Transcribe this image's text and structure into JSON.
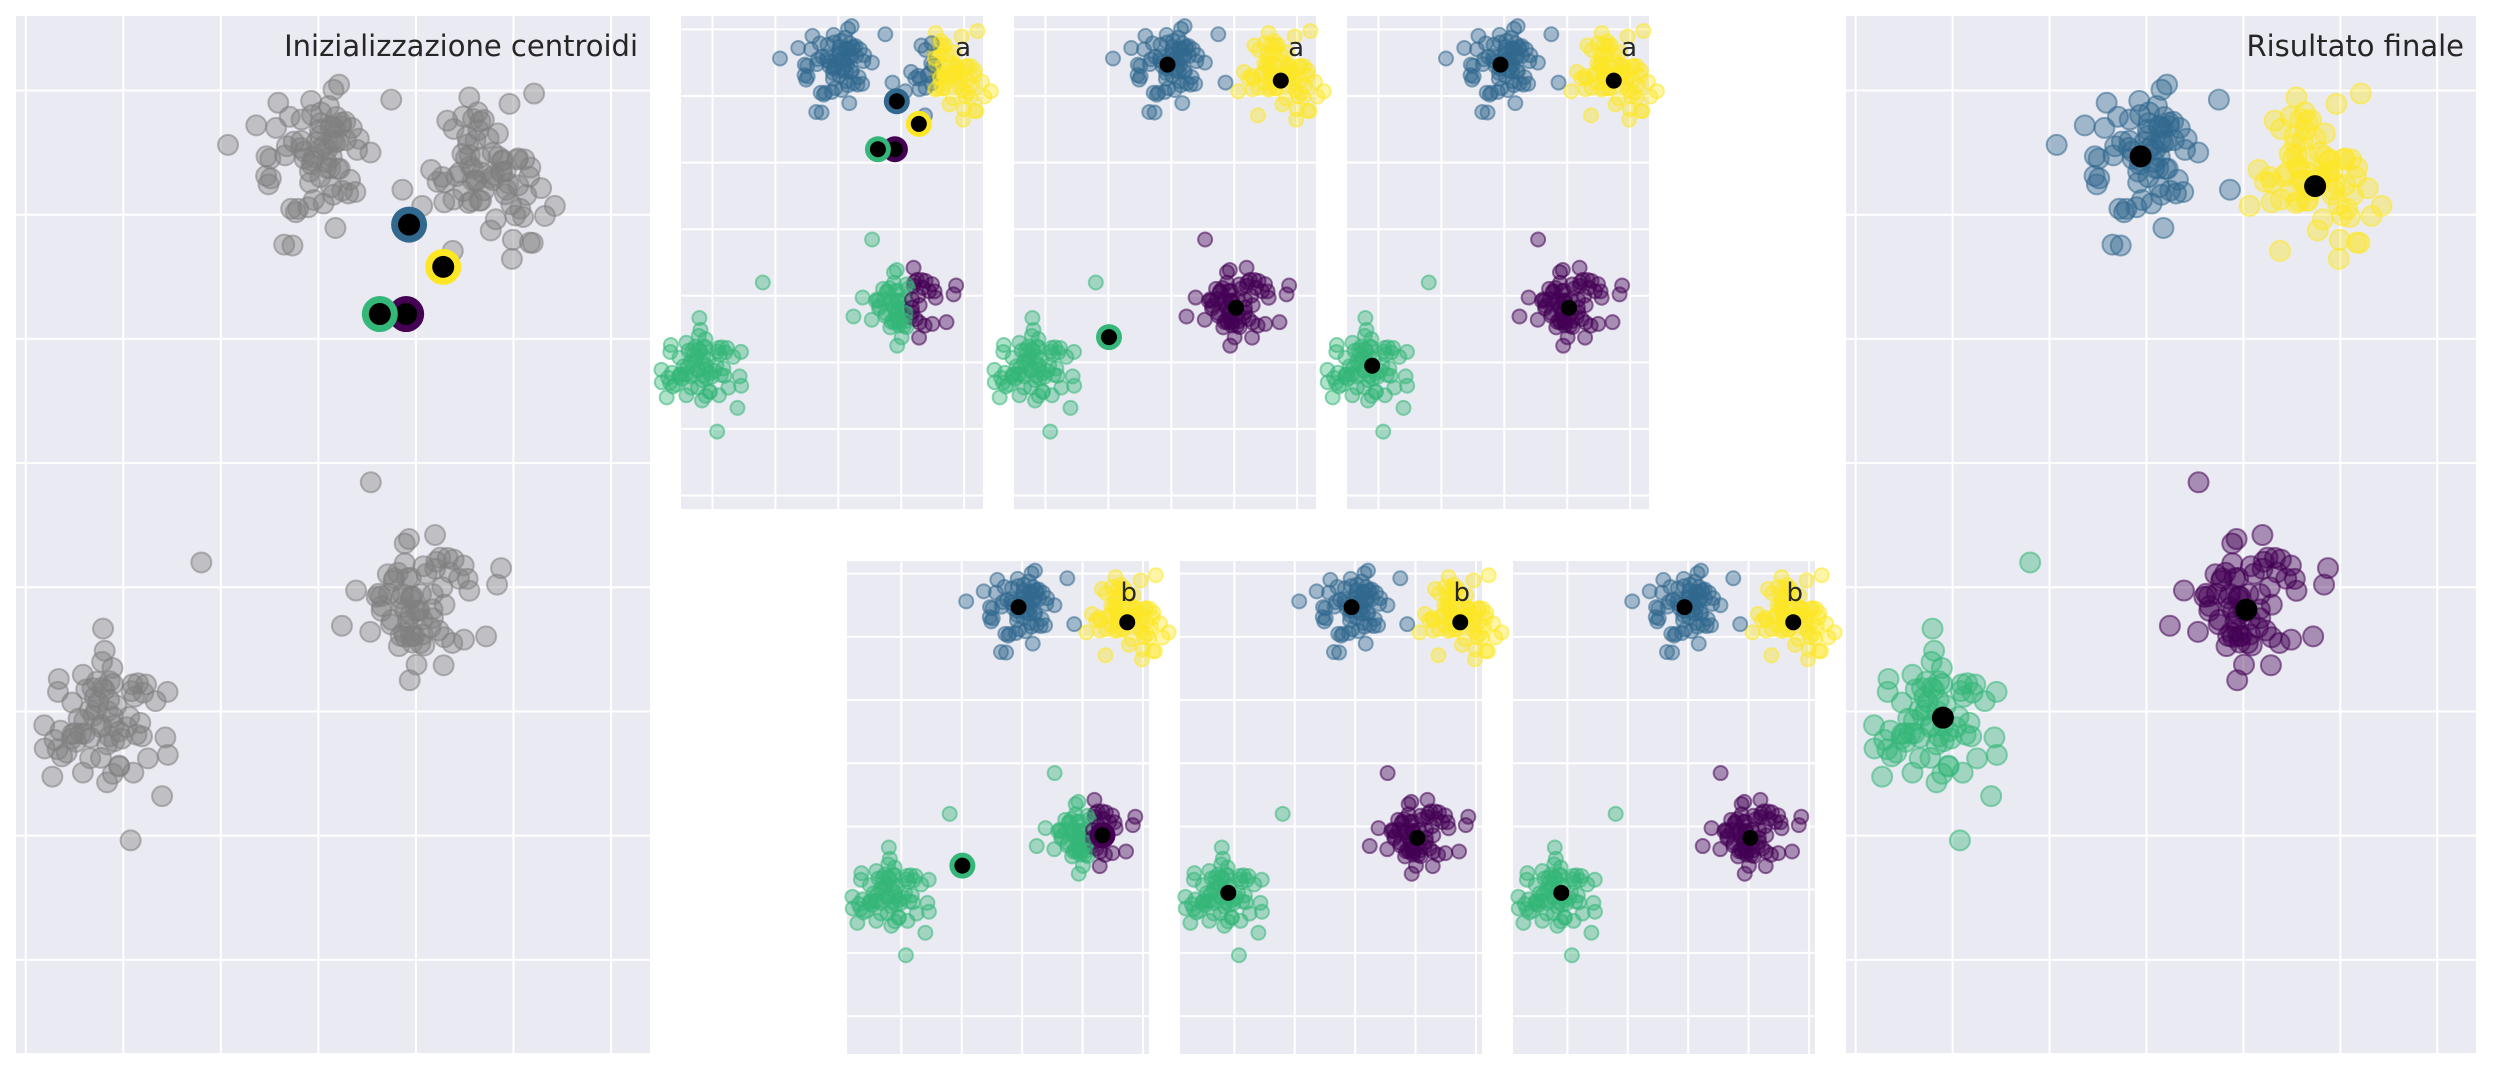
{
  "colors": {
    "gray": "#808080",
    "cluster_0": "#440154",
    "cluster_1": "#31688e",
    "cluster_2": "#35b779",
    "cluster_3": "#fde725",
    "centroid": "#000000",
    "panel_bg": "#eaeaf2",
    "grid": "#ffffff"
  },
  "chart_data": [
    {
      "type": "scatter",
      "title": "Inizializzazione centroidi",
      "grid": true,
      "xlim": [
        -3.1,
        3.4
      ],
      "ylim": [
        -2.75,
        5.6
      ],
      "clusters": [
        {
          "name": "",
          "center": [
            1.72,
            4.36
          ],
          "color": "gray",
          "state": "all"
        },
        {
          "name": "",
          "center": [
            -0.04,
            4.47
          ],
          "color": "gray",
          "state": "all"
        },
        {
          "name": "",
          "center": [
            1.01,
            0.86
          ],
          "color": "gray",
          "state": "all"
        },
        {
          "name": "",
          "center": [
            -2.15,
            -0.06
          ],
          "color": "gray",
          "state": "all"
        }
      ],
      "outliers": [
        {
          "x": -1.2,
          "y": 1.2,
          "color": "gray"
        }
      ],
      "centroids": [
        {
          "x": 0.93,
          "y": 3.92,
          "ring": "cluster_1"
        },
        {
          "x": 1.28,
          "y": 3.58,
          "ring": "cluster_3"
        },
        {
          "x": 0.9,
          "y": 3.2,
          "ring": "cluster_0"
        },
        {
          "x": 0.63,
          "y": 3.2,
          "ring": "cluster_2"
        }
      ]
    },
    {
      "type": "scatter",
      "title": "a",
      "grid": true,
      "xlim": [
        -2.5,
        2.3
      ],
      "ylim": [
        -2.2,
        5.2
      ],
      "clusters": [
        {
          "name": "",
          "center": [
            1.72,
            4.36
          ],
          "color": "cluster_3",
          "state": "split_blue"
        },
        {
          "name": "",
          "center": [
            -0.04,
            4.47
          ],
          "color": "cluster_1",
          "state": "all"
        },
        {
          "name": "",
          "center": [
            1.01,
            0.86
          ],
          "color": "cluster_2",
          "state": "split_purple"
        },
        {
          "name": "",
          "center": [
            -2.15,
            -0.06
          ],
          "color": "cluster_2",
          "state": "all"
        }
      ],
      "outliers": [
        {
          "x": -1.2,
          "y": 1.2,
          "color": "cluster_2"
        }
      ],
      "centroids": [
        {
          "x": 0.93,
          "y": 3.92,
          "ring": "cluster_1"
        },
        {
          "x": 1.28,
          "y": 3.58,
          "ring": "cluster_3"
        },
        {
          "x": 0.9,
          "y": 3.2,
          "ring": "cluster_0"
        },
        {
          "x": 0.63,
          "y": 3.2,
          "ring": "cluster_2"
        }
      ]
    },
    {
      "type": "scatter",
      "title": "a",
      "grid": true,
      "xlim": [
        -2.5,
        2.3
      ],
      "ylim": [
        -2.2,
        5.2
      ],
      "clusters": [
        {
          "name": "",
          "center": [
            1.72,
            4.36
          ],
          "color": "cluster_3",
          "state": "all"
        },
        {
          "name": "",
          "center": [
            -0.04,
            4.47
          ],
          "color": "cluster_1",
          "state": "all"
        },
        {
          "name": "",
          "center": [
            1.01,
            0.86
          ],
          "color": "cluster_0",
          "state": "all"
        },
        {
          "name": "",
          "center": [
            -2.15,
            -0.06
          ],
          "color": "cluster_2",
          "state": "all"
        }
      ],
      "outliers": [
        {
          "x": -1.2,
          "y": 1.2,
          "color": "cluster_2"
        }
      ],
      "centroids": [
        {
          "x": -0.06,
          "y": 4.47,
          "ring": ""
        },
        {
          "x": 1.74,
          "y": 4.23,
          "ring": ""
        },
        {
          "x": 1.03,
          "y": 0.82,
          "ring": ""
        },
        {
          "x": -0.99,
          "y": 0.38,
          "ring": "cluster_2"
        }
      ]
    },
    {
      "type": "scatter",
      "title": "a",
      "grid": true,
      "xlim": [
        -2.5,
        2.3
      ],
      "ylim": [
        -2.2,
        5.2
      ],
      "clusters": [
        {
          "name": "",
          "center": [
            1.72,
            4.36
          ],
          "color": "cluster_3",
          "state": "all"
        },
        {
          "name": "",
          "center": [
            -0.04,
            4.47
          ],
          "color": "cluster_1",
          "state": "all"
        },
        {
          "name": "",
          "center": [
            1.01,
            0.86
          ],
          "color": "cluster_0",
          "state": "all"
        },
        {
          "name": "",
          "center": [
            -2.15,
            -0.06
          ],
          "color": "cluster_2",
          "state": "all"
        }
      ],
      "outliers": [
        {
          "x": -1.2,
          "y": 1.2,
          "color": "cluster_2"
        }
      ],
      "centroids": [
        {
          "x": -0.06,
          "y": 4.47,
          "ring": ""
        },
        {
          "x": 1.74,
          "y": 4.23,
          "ring": ""
        },
        {
          "x": 1.03,
          "y": 0.82,
          "ring": ""
        },
        {
          "x": -2.1,
          "y": -0.05,
          "ring": ""
        }
      ]
    },
    {
      "type": "scatter",
      "title": "b",
      "grid": true,
      "xlim": [
        -2.9,
        2.1
      ],
      "ylim": [
        -2.6,
        5.2
      ],
      "clusters": [
        {
          "name": "",
          "center": [
            1.72,
            4.36
          ],
          "color": "cluster_3",
          "state": "all"
        },
        {
          "name": "",
          "center": [
            -0.04,
            4.47
          ],
          "color": "cluster_1",
          "state": "all"
        },
        {
          "name": "",
          "center": [
            1.01,
            0.86
          ],
          "color": "cluster_2",
          "state": "split_purple"
        },
        {
          "name": "",
          "center": [
            -2.15,
            -0.06
          ],
          "color": "cluster_2",
          "state": "all"
        }
      ],
      "outliers": [
        {
          "x": -1.2,
          "y": 1.2,
          "color": "cluster_2"
        }
      ],
      "centroids": [
        {
          "x": -0.06,
          "y": 4.47,
          "ring": ""
        },
        {
          "x": 1.74,
          "y": 4.23,
          "ring": ""
        },
        {
          "x": 1.33,
          "y": 0.86,
          "ring": "cluster_0"
        },
        {
          "x": -0.99,
          "y": 0.38,
          "ring": "cluster_2"
        }
      ]
    },
    {
      "type": "scatter",
      "title": "b",
      "grid": true,
      "xlim": [
        -2.9,
        2.1
      ],
      "ylim": [
        -2.6,
        5.2
      ],
      "clusters": [
        {
          "name": "",
          "center": [
            1.72,
            4.36
          ],
          "color": "cluster_3",
          "state": "all"
        },
        {
          "name": "",
          "center": [
            -0.04,
            4.47
          ],
          "color": "cluster_1",
          "state": "all"
        },
        {
          "name": "",
          "center": [
            1.01,
            0.86
          ],
          "color": "cluster_0",
          "state": "all"
        },
        {
          "name": "",
          "center": [
            -2.15,
            -0.06
          ],
          "color": "cluster_2",
          "state": "all"
        }
      ],
      "outliers": [
        {
          "x": -1.2,
          "y": 1.2,
          "color": "cluster_2"
        }
      ],
      "centroids": [
        {
          "x": -0.06,
          "y": 4.47,
          "ring": ""
        },
        {
          "x": 1.74,
          "y": 4.23,
          "ring": ""
        },
        {
          "x": 1.03,
          "y": 0.82,
          "ring": ""
        },
        {
          "x": -2.1,
          "y": -0.05,
          "ring": ""
        }
      ]
    },
    {
      "type": "scatter",
      "title": "b",
      "grid": true,
      "xlim": [
        -2.9,
        2.1
      ],
      "ylim": [
        -2.6,
        5.2
      ],
      "clusters": [
        {
          "name": "",
          "center": [
            1.72,
            4.36
          ],
          "color": "cluster_3",
          "state": "all"
        },
        {
          "name": "",
          "center": [
            -0.04,
            4.47
          ],
          "color": "cluster_1",
          "state": "all"
        },
        {
          "name": "",
          "center": [
            1.01,
            0.86
          ],
          "color": "cluster_0",
          "state": "all"
        },
        {
          "name": "",
          "center": [
            -2.15,
            -0.06
          ],
          "color": "cluster_2",
          "state": "all"
        }
      ],
      "outliers": [
        {
          "x": -1.2,
          "y": 1.2,
          "color": "cluster_2"
        }
      ],
      "centroids": [
        {
          "x": -0.06,
          "y": 4.47,
          "ring": ""
        },
        {
          "x": 1.74,
          "y": 4.23,
          "ring": ""
        },
        {
          "x": 1.03,
          "y": 0.82,
          "ring": ""
        },
        {
          "x": -2.1,
          "y": -0.05,
          "ring": ""
        }
      ]
    },
    {
      "type": "scatter",
      "title": "Risultato finale",
      "grid": true,
      "xlim": [
        -3.1,
        3.4
      ],
      "ylim": [
        -2.75,
        5.6
      ],
      "clusters": [
        {
          "name": "",
          "center": [
            1.72,
            4.36
          ],
          "color": "cluster_3",
          "state": "all"
        },
        {
          "name": "",
          "center": [
            -0.04,
            4.47
          ],
          "color": "cluster_1",
          "state": "all"
        },
        {
          "name": "",
          "center": [
            1.01,
            0.86
          ],
          "color": "cluster_0",
          "state": "all"
        },
        {
          "name": "",
          "center": [
            -2.15,
            -0.06
          ],
          "color": "cluster_2",
          "state": "all"
        }
      ],
      "outliers": [
        {
          "x": -1.2,
          "y": 1.2,
          "color": "cluster_2"
        }
      ],
      "centroids": [
        {
          "x": -0.06,
          "y": 4.47,
          "ring": ""
        },
        {
          "x": 1.74,
          "y": 4.23,
          "ring": ""
        },
        {
          "x": 1.03,
          "y": 0.82,
          "ring": ""
        },
        {
          "x": -2.1,
          "y": -0.05,
          "ring": ""
        }
      ]
    }
  ]
}
